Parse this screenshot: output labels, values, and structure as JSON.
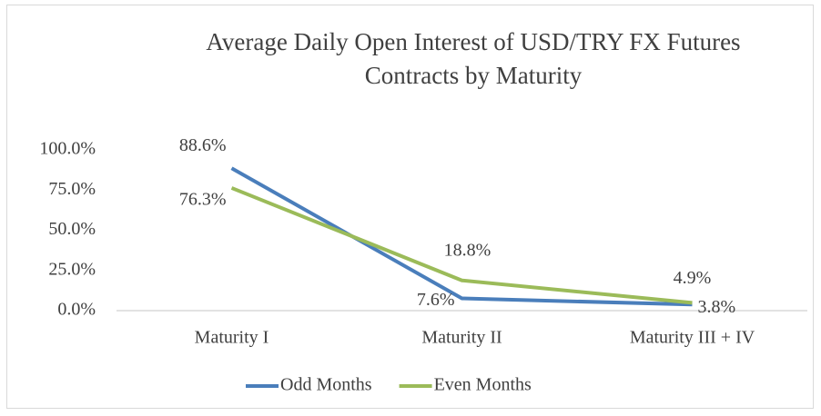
{
  "chart_data": {
    "type": "line",
    "title": "Average Daily Open Interest of USD/TRY FX Futures Contracts by Maturity",
    "categories": [
      "Maturity I",
      "Maturity II",
      "Maturity III + IV"
    ],
    "series": [
      {
        "name": "Odd Months",
        "color": "#4a7ebb",
        "values": [
          88.6,
          7.6,
          3.8
        ],
        "value_labels": [
          "88.6%",
          "7.6%",
          "3.8%"
        ]
      },
      {
        "name": "Even Months",
        "color": "#9bbb59",
        "values": [
          76.3,
          18.8,
          4.9
        ],
        "value_labels": [
          "76.3%",
          "18.8%",
          "4.9%"
        ]
      }
    ],
    "ylim": [
      0,
      100
    ],
    "yticks": [
      {
        "value": 0,
        "label": "0.0%"
      },
      {
        "value": 25,
        "label": "25.0%"
      },
      {
        "value": 50,
        "label": "50.0%"
      },
      {
        "value": 75,
        "label": "75.0%"
      },
      {
        "value": 100,
        "label": "100.0%"
      }
    ],
    "grid": false,
    "legend": "bottom"
  }
}
